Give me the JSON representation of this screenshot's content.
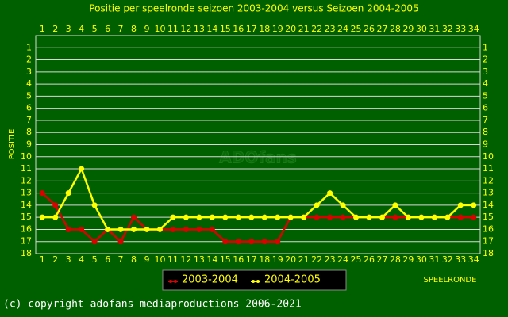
{
  "chart_data": {
    "type": "line",
    "title": "Positie per speelronde seizoen 2003-2004 versus Seizoen 2004-2005",
    "y_label": "POSITIE",
    "x_label": "SPEELRONDE",
    "watermark": "ADOfans",
    "footer": "(c) copyright adofans mediaproductions 2006-2021",
    "x": [
      1,
      2,
      3,
      4,
      5,
      6,
      7,
      8,
      9,
      10,
      11,
      12,
      13,
      14,
      15,
      16,
      17,
      18,
      19,
      20,
      21,
      22,
      23,
      24,
      25,
      26,
      27,
      28,
      29,
      30,
      31,
      32,
      33,
      34
    ],
    "xlim": [
      0.5,
      34.5
    ],
    "xticks": [
      1,
      2,
      3,
      4,
      5,
      6,
      7,
      8,
      9,
      10,
      11,
      12,
      13,
      14,
      15,
      16,
      17,
      18,
      19,
      20,
      21,
      22,
      23,
      24,
      25,
      26,
      27,
      28,
      29,
      30,
      31,
      32,
      33,
      34
    ],
    "ylim": [
      0,
      18
    ],
    "yticks": [
      1,
      2,
      3,
      4,
      5,
      6,
      7,
      8,
      9,
      10,
      11,
      12,
      13,
      14,
      15,
      16,
      17,
      18
    ],
    "y_inverted": true,
    "grid": true,
    "series": [
      {
        "name": "2003-2004",
        "color": "#dd0000",
        "values": [
          13,
          14,
          16,
          16,
          17,
          16,
          17,
          15,
          16,
          16,
          16,
          16,
          16,
          16,
          17,
          17,
          17,
          17,
          17,
          15,
          15,
          15,
          15,
          15,
          15,
          15,
          15,
          15,
          15,
          15,
          15,
          15,
          15,
          15
        ]
      },
      {
        "name": "2004-2005",
        "color": "#ffff00",
        "values": [
          15,
          15,
          13,
          11,
          14,
          16,
          16,
          16,
          16,
          16,
          15,
          15,
          15,
          15,
          15,
          15,
          15,
          15,
          15,
          15,
          15,
          14,
          13,
          14,
          15,
          15,
          15,
          14,
          15,
          15,
          15,
          15,
          14,
          14
        ]
      }
    ]
  }
}
